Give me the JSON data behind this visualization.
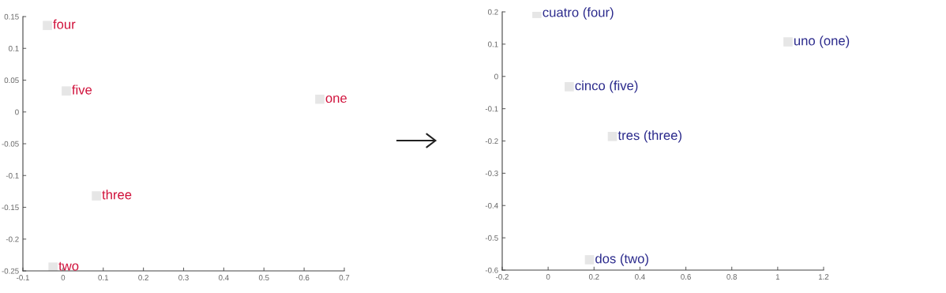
{
  "chart_data": [
    {
      "type": "scatter",
      "marker": "square",
      "grid": false,
      "legend": false,
      "series": [
        {
          "color": "#e6e6e6",
          "x": [
            0.639,
            -0.025,
            0.083,
            -0.039,
            0.008
          ],
          "values": [
            0.02,
            -0.244,
            -0.132,
            0.136,
            0.033
          ]
        }
      ],
      "annotations": [
        {
          "text": "one",
          "x": 0.639,
          "y": 0.02
        },
        {
          "text": "two",
          "x": -0.025,
          "y": -0.244
        },
        {
          "text": "three",
          "x": 0.083,
          "y": -0.132
        },
        {
          "text": "four",
          "x": -0.039,
          "y": 0.136
        },
        {
          "text": "five",
          "x": 0.008,
          "y": 0.033
        }
      ],
      "xlim": [
        -0.1,
        0.7
      ],
      "xticks": [
        -0.1,
        0,
        0.1,
        0.2,
        0.3,
        0.4,
        0.5,
        0.6,
        0.7
      ],
      "ylim": [
        -0.25,
        0.15
      ],
      "yticks": [
        -0.25,
        -0.2,
        -0.15,
        -0.1,
        -0.05,
        0,
        0.05,
        0.1,
        0.15
      ]
    },
    {
      "type": "scatter",
      "marker": "square",
      "grid": false,
      "legend": false,
      "series": [
        {
          "color": "#e6e6e6",
          "x": [
            1.045,
            0.18,
            0.28,
            -0.049,
            0.092
          ],
          "values": [
            0.107,
            -0.568,
            -0.186,
            0.195,
            -0.032
          ]
        }
      ],
      "annotations": [
        {
          "text": "uno (one)",
          "x": 1.045,
          "y": 0.107
        },
        {
          "text": "dos (two)",
          "x": 0.18,
          "y": -0.568
        },
        {
          "text": "tres (three)",
          "x": 0.28,
          "y": -0.186
        },
        {
          "text": "cuatro (four)",
          "x": -0.049,
          "y": 0.195
        },
        {
          "text": "cinco (five)",
          "x": 0.092,
          "y": -0.032
        }
      ],
      "xlim": [
        -0.2,
        1.2
      ],
      "xticks": [
        -0.2,
        0,
        0.2,
        0.4,
        0.6,
        0.8,
        1,
        1.2
      ],
      "ylim": [
        -0.6,
        0.2
      ],
      "yticks": [
        -0.6,
        -0.5,
        -0.4,
        -0.3,
        -0.2,
        -0.1,
        0,
        0.1,
        0.2
      ]
    }
  ]
}
